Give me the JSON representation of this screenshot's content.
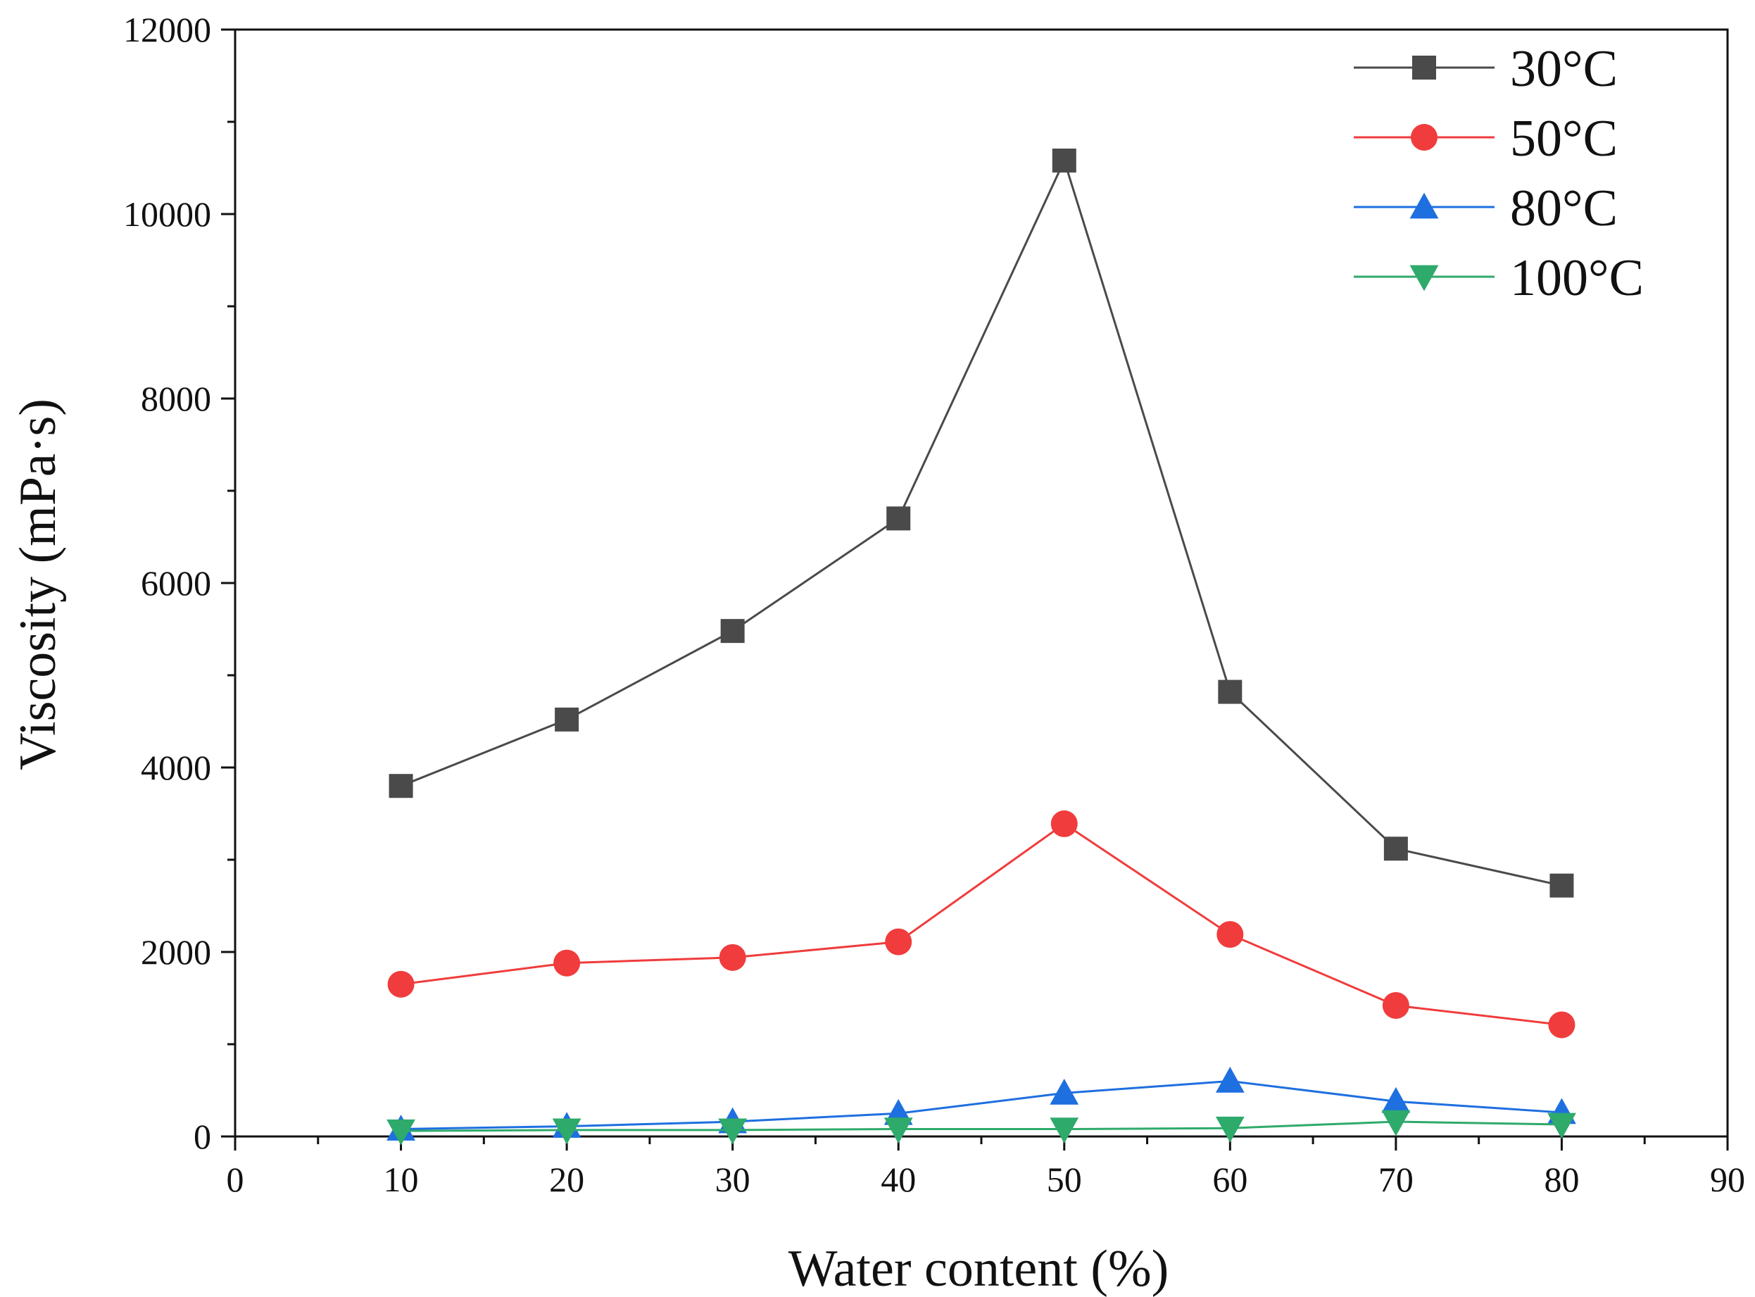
{
  "chart_data": {
    "type": "line",
    "xlabel": "Water content (%)",
    "ylabel": "Viscosity (mPa·s)",
    "xlim": [
      0,
      90
    ],
    "ylim": [
      0,
      12000
    ],
    "x_ticks": [
      0,
      10,
      20,
      30,
      40,
      50,
      60,
      70,
      80,
      90
    ],
    "y_ticks": [
      0,
      2000,
      4000,
      6000,
      8000,
      10000,
      12000
    ],
    "x": [
      10,
      20,
      30,
      40,
      50,
      60,
      70,
      80
    ],
    "grid": false,
    "legend_position": "top-right",
    "series": [
      {
        "name": "30°C",
        "color": "#4a4a4a",
        "marker": "square",
        "values": [
          3800,
          4520,
          5480,
          6700,
          10580,
          4820,
          3120,
          2720
        ]
      },
      {
        "name": "50°C",
        "color": "#f03c3c",
        "marker": "circle",
        "values": [
          1650,
          1880,
          1940,
          2110,
          3390,
          2190,
          1420,
          1210
        ]
      },
      {
        "name": "80°C",
        "color": "#1e6fe0",
        "marker": "triangle-up",
        "values": [
          80,
          110,
          160,
          250,
          470,
          600,
          380,
          260
        ]
      },
      {
        "name": "100°C",
        "color": "#2eaa6b",
        "marker": "triangle-down",
        "values": [
          60,
          70,
          70,
          80,
          80,
          90,
          160,
          130
        ]
      }
    ]
  }
}
